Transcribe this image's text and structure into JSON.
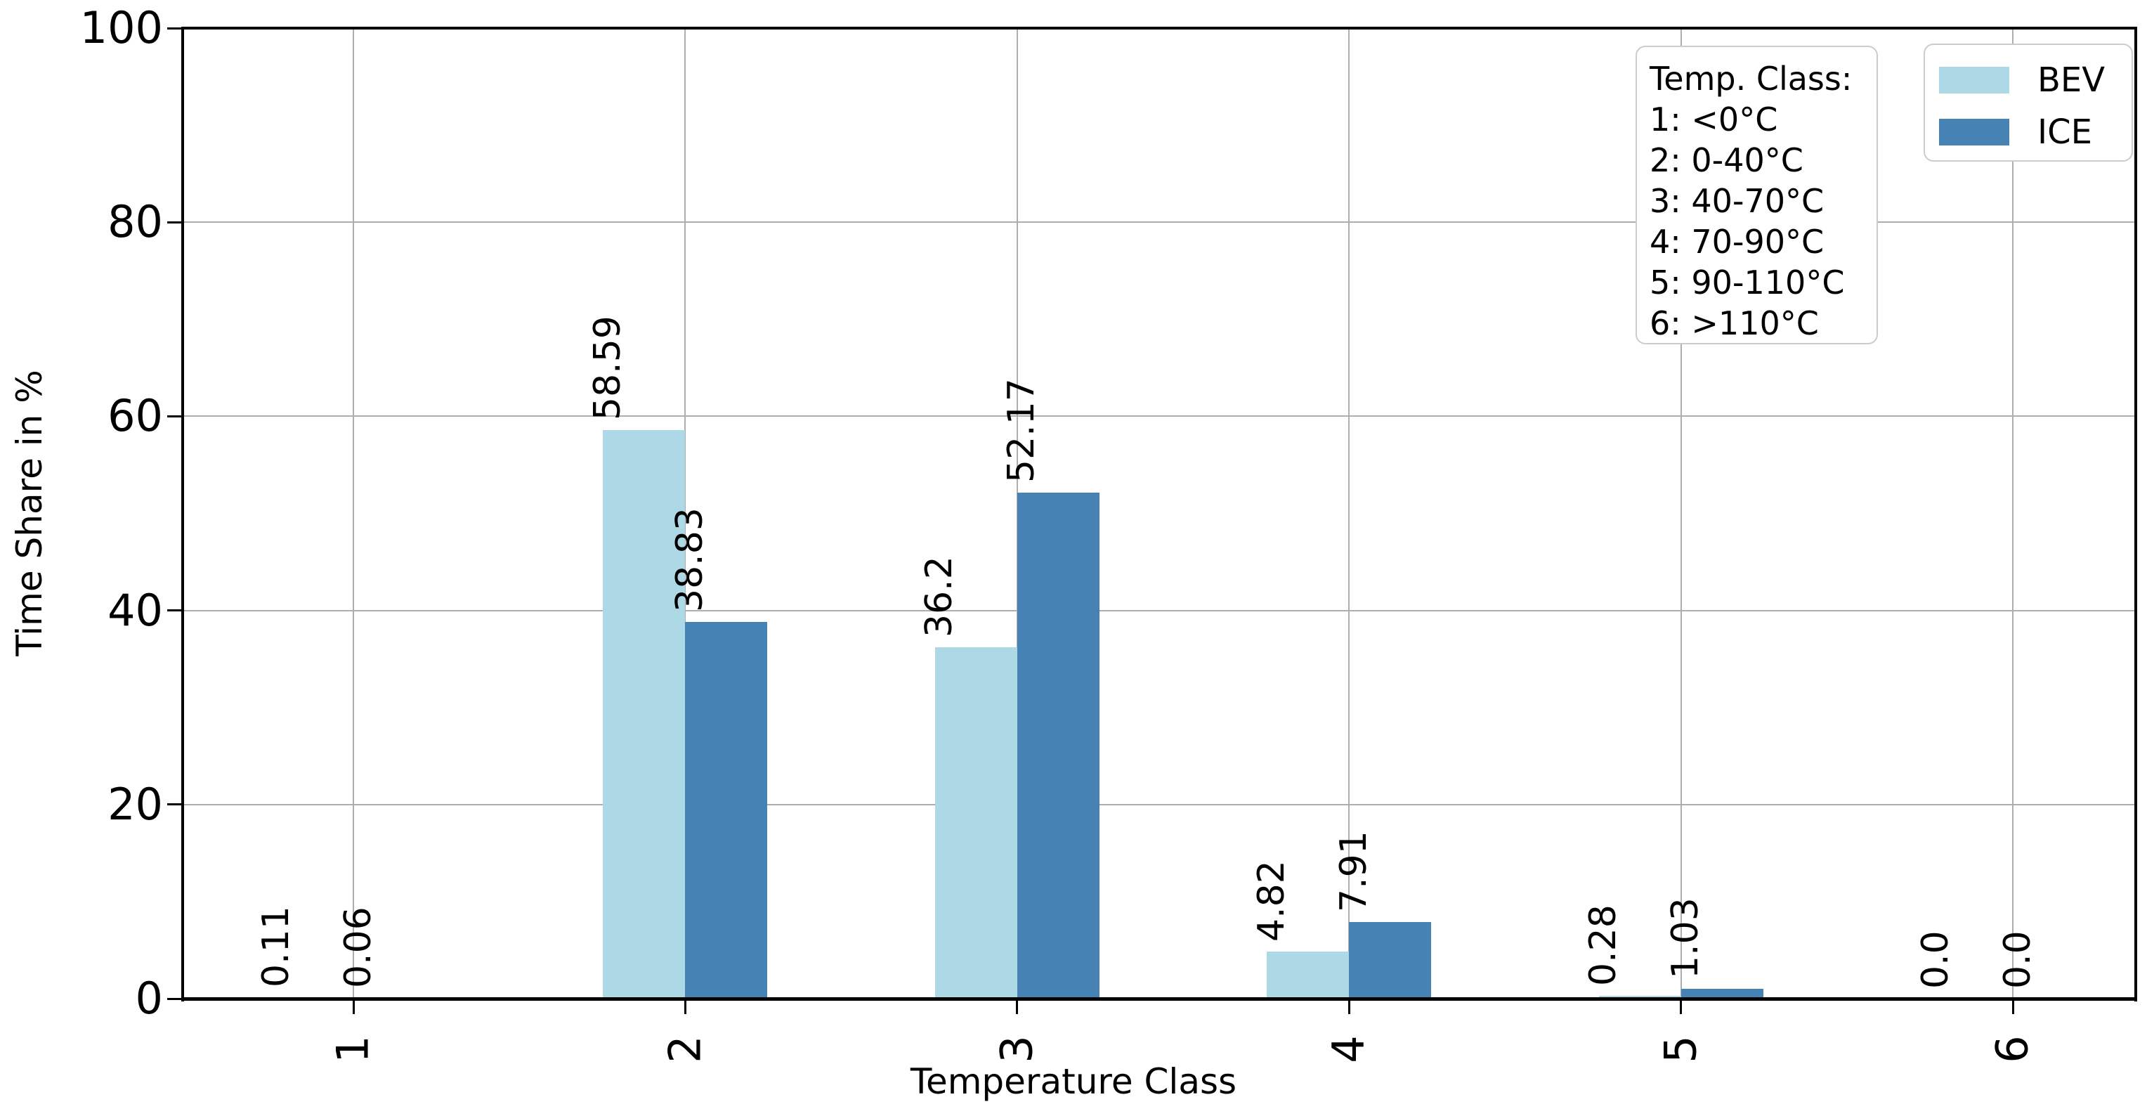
{
  "chart_data": {
    "type": "bar",
    "title": "",
    "xlabel": "Temperature Class",
    "ylabel": "Time Share in %",
    "categories": [
      "1",
      "2",
      "3",
      "4",
      "5",
      "6"
    ],
    "series": [
      {
        "name": "BEV",
        "color": "#ADD8E6",
        "values": [
          0.11,
          58.59,
          36.2,
          4.82,
          0.28,
          0.0
        ]
      },
      {
        "name": "ICE",
        "color": "#4682B4",
        "values": [
          0.06,
          38.83,
          52.17,
          7.91,
          1.03,
          0.0
        ]
      }
    ],
    "value_labels": [
      [
        "0.11",
        "58.59",
        "36.2",
        "4.82",
        "0.28",
        "0.0"
      ],
      [
        "0.06",
        "38.83",
        "52.17",
        "7.91",
        "1.03",
        "0.0"
      ]
    ],
    "ylim": [
      0,
      100
    ],
    "yticks": [
      0,
      20,
      40,
      60,
      80,
      100
    ],
    "grid": true,
    "legend_position": "upper right"
  },
  "annotation_box": {
    "title": "Temp. Class:",
    "lines": [
      "1: <0°C",
      "2: 0-40°C",
      "3: 40-70°C",
      "4: 70-90°C",
      "5: 90-110°C",
      "6: >110°C"
    ]
  },
  "legend": {
    "items": [
      {
        "label": "BEV",
        "color": "#ADD8E6"
      },
      {
        "label": "ICE",
        "color": "#4682B4"
      }
    ]
  },
  "colors": {
    "background": "#ffffff",
    "gridline": "#adadad",
    "spine": "#000000",
    "text": "#000000"
  }
}
